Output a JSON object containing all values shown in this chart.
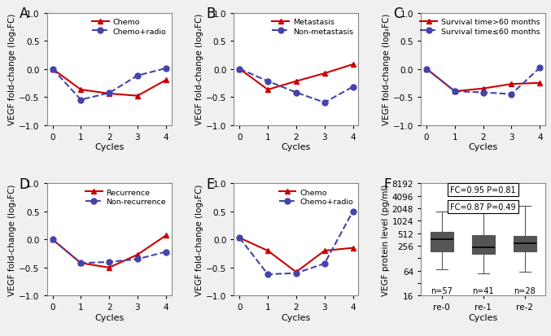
{
  "panel_A": {
    "label": "A",
    "x": [
      0,
      1,
      2,
      3,
      4
    ],
    "line1": {
      "y": [
        0,
        -0.37,
        -0.44,
        -0.48,
        -0.2
      ],
      "color": "#cc0000",
      "label": "Chemo",
      "linestyle": "-",
      "marker": "^"
    },
    "line2": {
      "y": [
        0,
        -0.55,
        -0.43,
        -0.12,
        0.01
      ],
      "color": "#4444aa",
      "label": "Chemo+radio",
      "linestyle": "--",
      "marker": "o"
    }
  },
  "panel_B": {
    "label": "B",
    "x": [
      0,
      1,
      2,
      3,
      4
    ],
    "line1": {
      "y": [
        0,
        -0.37,
        -0.22,
        -0.08,
        0.08
      ],
      "color": "#cc0000",
      "label": "Metastasis",
      "linestyle": "-",
      "marker": "^"
    },
    "line2": {
      "y": [
        0,
        -0.22,
        -0.42,
        -0.6,
        -0.32
      ],
      "color": "#4444aa",
      "label": "Non-metastasis",
      "linestyle": "--",
      "marker": "o"
    }
  },
  "panel_C": {
    "label": "C",
    "x": [
      0,
      1,
      2,
      3,
      4
    ],
    "line1": {
      "y": [
        0,
        -0.4,
        -0.35,
        -0.27,
        -0.25
      ],
      "color": "#cc0000",
      "label": "Survival time>60 months",
      "linestyle": "-",
      "marker": "^"
    },
    "line2": {
      "y": [
        0,
        -0.4,
        -0.42,
        -0.45,
        0.02
      ],
      "color": "#4444aa",
      "label": "Survival time≤60 months",
      "linestyle": "--",
      "marker": "o"
    }
  },
  "panel_D": {
    "label": "D",
    "x": [
      0,
      1,
      2,
      3,
      4
    ],
    "line1": {
      "y": [
        0,
        -0.42,
        -0.5,
        -0.27,
        0.07
      ],
      "color": "#cc0000",
      "label": "Recurrence",
      "linestyle": "-",
      "marker": "^"
    },
    "line2": {
      "y": [
        0,
        -0.42,
        -0.4,
        -0.35,
        -0.22
      ],
      "color": "#4444aa",
      "label": "Non-recurrence",
      "linestyle": "--",
      "marker": "o"
    }
  },
  "panel_E": {
    "label": "E",
    "x": [
      0,
      1,
      2,
      3,
      4
    ],
    "line1": {
      "y": [
        0.03,
        -0.2,
        -0.58,
        -0.2,
        -0.15
      ],
      "color": "#cc0000",
      "label": "Chemo",
      "linestyle": "-",
      "marker": "^"
    },
    "line2": {
      "y": [
        0.03,
        -0.62,
        -0.6,
        -0.43,
        0.5
      ],
      "color": "#4444aa",
      "label": "Chemo+radio",
      "linestyle": "--",
      "marker": "o"
    }
  },
  "panel_F": {
    "label": "F",
    "ylabel": "VEGF protein level (pg/ml)",
    "xlabel": "Cycles",
    "categories": [
      "re-0",
      "re-1",
      "re-2"
    ],
    "n_labels": [
      "n=57",
      "n=41",
      "n=28"
    ],
    "annotations": [
      "FC=0.95 P=0.81",
      "FC=0.87 P=0.49"
    ],
    "yticks": [
      16,
      32,
      64,
      128,
      256,
      512,
      1024,
      2048,
      4096,
      8192
    ],
    "ytick_labels": [
      "16",
      "",
      "64",
      "",
      "256",
      "512",
      "1024",
      "2048",
      "4096",
      "8192"
    ],
    "box_data": {
      "re-0": {
        "q1": 190,
        "median": 370,
        "q3": 560,
        "whislo": 70,
        "whishi": 1700
      },
      "re-1": {
        "q1": 160,
        "median": 230,
        "q3": 460,
        "whislo": 55,
        "whishi": 2100
      },
      "re-2": {
        "q1": 190,
        "median": 295,
        "q3": 440,
        "whislo": 60,
        "whishi": 2300
      }
    }
  },
  "line_ylim": [
    -1.0,
    1.0
  ],
  "line_yticks": [
    -1.0,
    -0.5,
    0.0,
    0.5,
    1.0
  ],
  "ylabel": "VEGF fold-change (log₂FC)",
  "xlabel": "Cycles",
  "bg_color": "#f0f0f0",
  "plot_bg": "#ffffff",
  "line_color_red": "#cc0000",
  "line_color_blue": "#4444aa",
  "marker_size": 5,
  "line_width": 1.5
}
